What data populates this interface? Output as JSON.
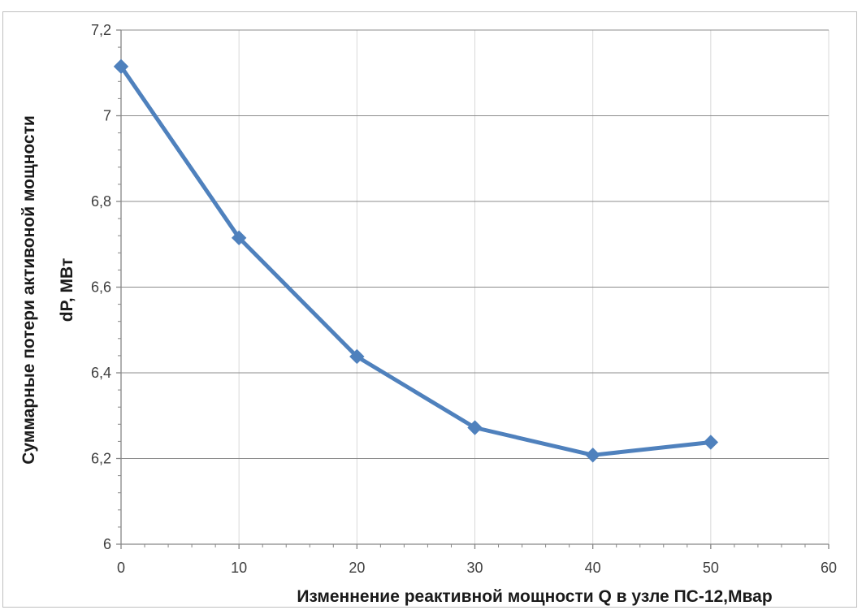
{
  "chart_data": {
    "type": "line",
    "title": "",
    "xlabel": "Изменнение реактивной мощности Q в узле ПС-12,Мвар",
    "ylabel_line1": "Суммарные потери активоной мощности",
    "ylabel_line2": "dP, МВт",
    "xlim": [
      0,
      60
    ],
    "ylim": [
      6,
      7.2
    ],
    "x_ticks": [
      0,
      10,
      20,
      30,
      40,
      50,
      60
    ],
    "x_tick_labels": [
      "0",
      "10",
      "20",
      "30",
      "40",
      "50",
      "60"
    ],
    "y_ticks": [
      6,
      6.2,
      6.4,
      6.6,
      6.8,
      7,
      7.2
    ],
    "y_tick_labels": [
      "6",
      "6,2",
      "6,4",
      "6,6",
      "6,8",
      "7",
      "7,2"
    ],
    "grid": "horizontal",
    "legend": "none",
    "series": [
      {
        "color": "#4f81bd",
        "marker": "diamond",
        "points": [
          {
            "x": 0,
            "y": 7.115
          },
          {
            "x": 10,
            "y": 6.715
          },
          {
            "x": 20,
            "y": 6.438
          },
          {
            "x": 30,
            "y": 6.272
          },
          {
            "x": 40,
            "y": 6.208
          },
          {
            "x": 50,
            "y": 6.238
          }
        ]
      }
    ]
  }
}
